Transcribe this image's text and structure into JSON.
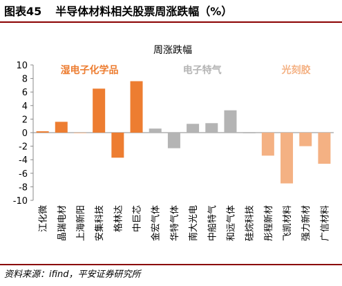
{
  "figure": {
    "number": "图表45",
    "title": "半导体材料相关股票周涨跌幅（%）",
    "source": "资料来源：ifind，平安证券研究所"
  },
  "colors": {
    "wet_chem": "#ED7D31",
    "electronic_gas": "#B4B4B4",
    "photoresist": "#F4B183",
    "rule": "#8a0000"
  },
  "chart_data": {
    "type": "bar",
    "title": "周涨跌幅",
    "ylim": [
      -10,
      10
    ],
    "yticks": [
      10,
      8,
      6,
      4,
      2,
      0,
      -2,
      -4,
      -6,
      -8,
      -10
    ],
    "grid": false,
    "groups": [
      {
        "label": "湿电子化学品",
        "color": "#ED7D31",
        "start": 0,
        "end": 5
      },
      {
        "label": "电子特气",
        "color": "#B4B4B4",
        "start": 6,
        "end": 11
      },
      {
        "label": "光刻胶",
        "color": "#F4B183",
        "start": 12,
        "end": 15
      }
    ],
    "categories": [
      "江化微",
      "晶瑞电材",
      "上海新阳",
      "安集科技",
      "格林达",
      "中巨芯",
      "金宏气体",
      "华特气体",
      "南大光电",
      "中船特气",
      "和远气体",
      "硅烷科技",
      "彤程新材",
      "飞凯材料",
      "强力新材",
      "广信材料"
    ],
    "values": [
      0.2,
      1.6,
      0,
      6.5,
      -3.7,
      7.6,
      0.6,
      -2.3,
      1.3,
      1.4,
      3.3,
      -0.1,
      -3.4,
      -7.5,
      -2.0,
      -4.6
    ]
  }
}
